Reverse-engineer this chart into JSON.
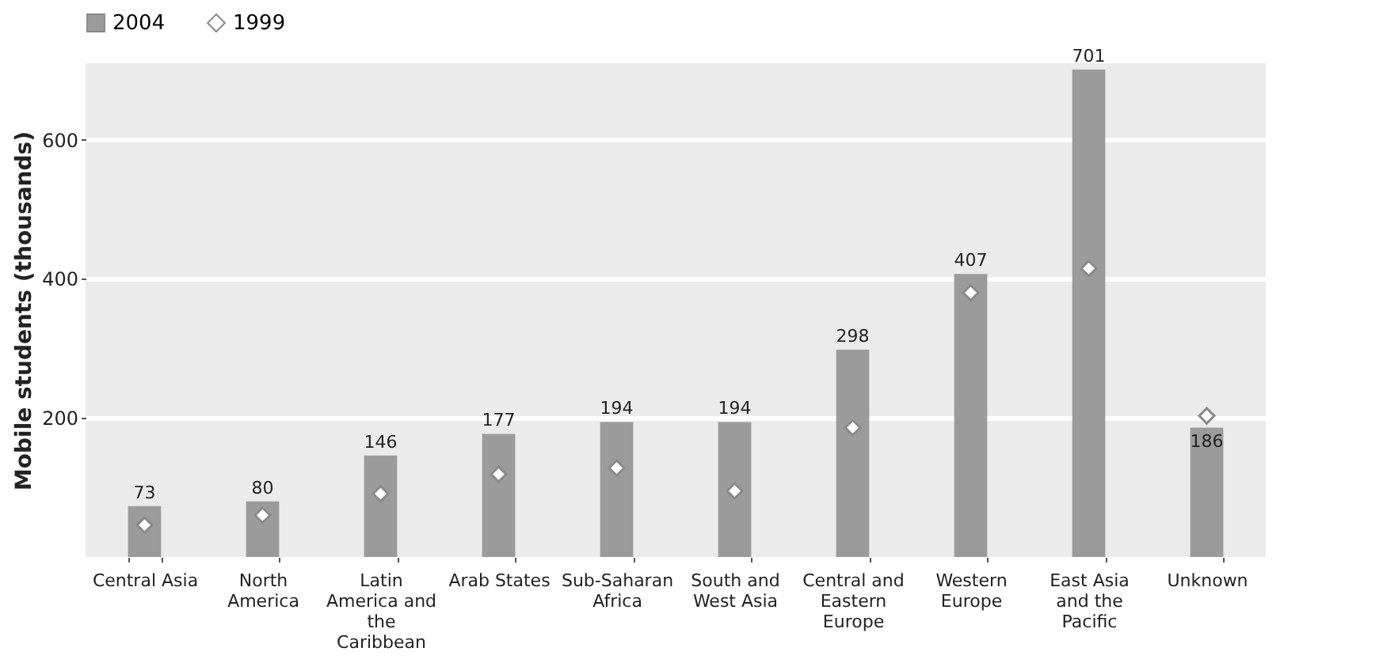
{
  "chart_data": {
    "type": "bar",
    "ylabel": "Mobile students (thousands)",
    "categories": [
      "Central Asia",
      "North America",
      "Latin America and the Caribbean",
      "Arab States",
      "Sub-Saharan Africa",
      "South and West Asia",
      "Central and Eastern Europe",
      "Western Europe",
      "East Asia and the Pacific",
      "Unknown"
    ],
    "series": [
      {
        "name": "2004",
        "color": "#9b9b9b",
        "values": [
          73,
          80,
          146,
          177,
          194,
          194,
          298,
          407,
          701,
          186
        ],
        "value_labels": [
          "73",
          "80",
          "146",
          "177",
          "194",
          "194",
          "298",
          "407",
          "701",
          "186"
        ]
      },
      {
        "name": "1999",
        "type": "scatter",
        "color": "#ffffff",
        "marker": "diamond",
        "values": [
          46,
          60,
          91,
          119,
          128,
          95,
          186,
          380,
          415,
          203
        ]
      }
    ],
    "ylim": [
      0,
      710
    ],
    "yticks": [
      200,
      400,
      600
    ],
    "grid": "y",
    "legend": "top"
  }
}
